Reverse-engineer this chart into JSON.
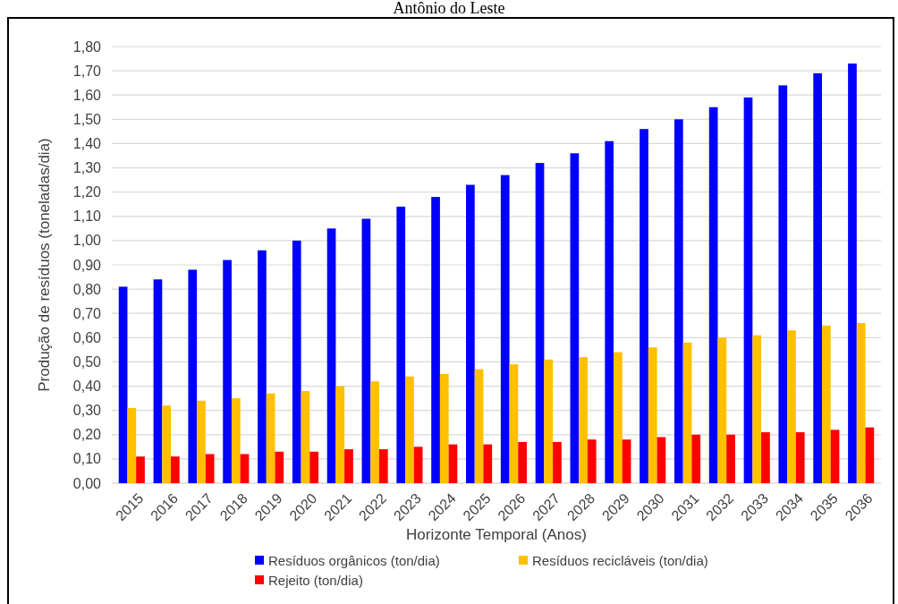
{
  "chart_data": {
    "type": "bar",
    "title": "Antônio do Leste",
    "xlabel": "Horizonte Temporal (Anos)",
    "ylabel": "Produção de resíduos (toneladas/dia)",
    "categories": [
      "2015",
      "2016",
      "2017",
      "2018",
      "2019",
      "2020",
      "2021",
      "2022",
      "2023",
      "2024",
      "2025",
      "2026",
      "2027",
      "2028",
      "2029",
      "2030",
      "2031",
      "2032",
      "2033",
      "2034",
      "2035",
      "2036"
    ],
    "series": [
      {
        "name": "Resíduos orgânicos (ton/dia)",
        "color": "#0000ff",
        "values": [
          0.81,
          0.84,
          0.88,
          0.92,
          0.96,
          1.0,
          1.05,
          1.09,
          1.14,
          1.18,
          1.23,
          1.27,
          1.32,
          1.36,
          1.41,
          1.46,
          1.5,
          1.55,
          1.59,
          1.64,
          1.69,
          1.73
        ]
      },
      {
        "name": "Resíduos recicláveis (ton/dia)",
        "color": "#ffc000",
        "values": [
          0.31,
          0.32,
          0.34,
          0.35,
          0.37,
          0.38,
          0.4,
          0.42,
          0.44,
          0.45,
          0.47,
          0.49,
          0.51,
          0.52,
          0.54,
          0.56,
          0.58,
          0.6,
          0.61,
          0.63,
          0.65,
          0.66
        ]
      },
      {
        "name": "Rejeito (ton/dia)",
        "color": "#ff0000",
        "values": [
          0.11,
          0.11,
          0.12,
          0.12,
          0.13,
          0.13,
          0.14,
          0.14,
          0.15,
          0.16,
          0.16,
          0.17,
          0.17,
          0.18,
          0.18,
          0.19,
          0.2,
          0.2,
          0.21,
          0.21,
          0.22,
          0.23
        ]
      }
    ],
    "ylim": [
      0,
      1.8
    ],
    "yticks": [
      {
        "value": 0,
        "label": "0,00"
      },
      {
        "value": 0.1,
        "label": "0,10"
      },
      {
        "value": 0.2,
        "label": "0,20"
      },
      {
        "value": 0.3,
        "label": "0,30"
      },
      {
        "value": 0.4,
        "label": "0,40"
      },
      {
        "value": 0.5,
        "label": "0,50"
      },
      {
        "value": 0.6,
        "label": "0,60"
      },
      {
        "value": 0.7,
        "label": "0,70"
      },
      {
        "value": 0.8,
        "label": "0,80"
      },
      {
        "value": 0.9,
        "label": "0,90"
      },
      {
        "value": 1.0,
        "label": "1,00"
      },
      {
        "value": 1.1,
        "label": "1,10"
      },
      {
        "value": 1.2,
        "label": "1,20"
      },
      {
        "value": 1.3,
        "label": "1,30"
      },
      {
        "value": 1.4,
        "label": "1,40"
      },
      {
        "value": 1.5,
        "label": "1,50"
      },
      {
        "value": 1.6,
        "label": "1,60"
      },
      {
        "value": 1.7,
        "label": "1,70"
      },
      {
        "value": 1.8,
        "label": "1,80"
      }
    ],
    "grid": "y",
    "legend": "bottom"
  }
}
